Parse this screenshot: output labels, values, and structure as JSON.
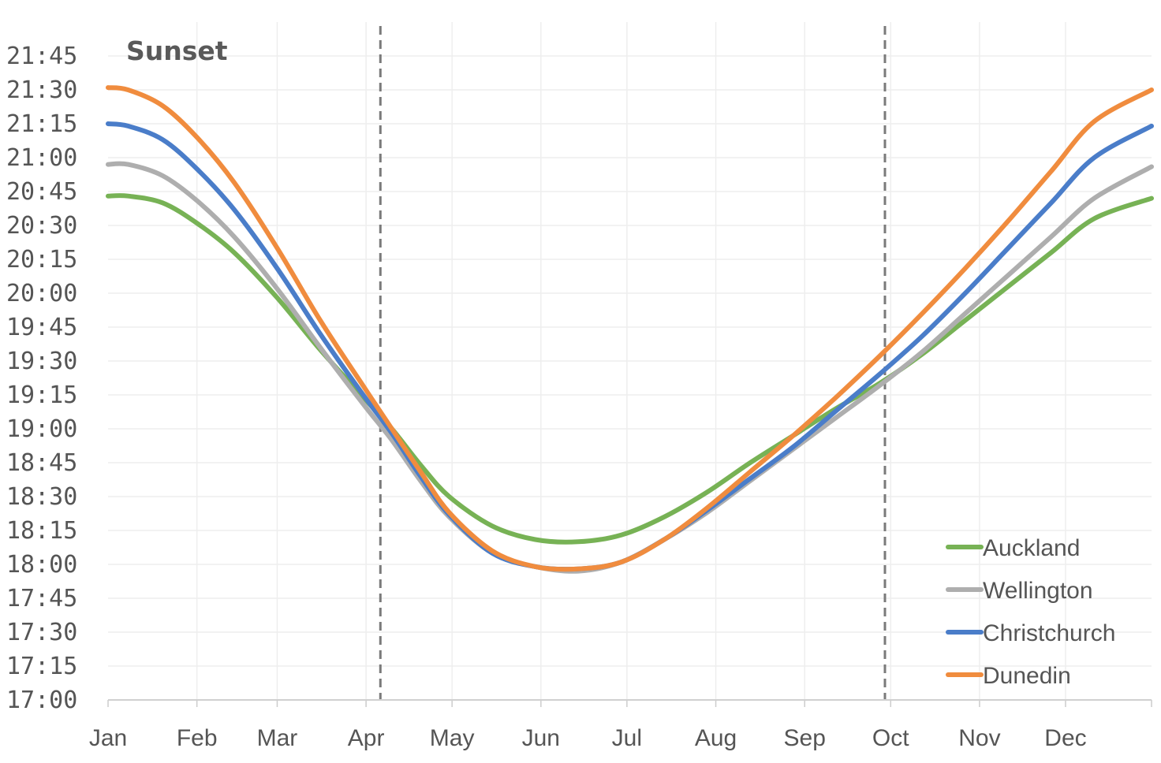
{
  "chart_data": {
    "type": "line",
    "title": "Sunset",
    "xlabel": "",
    "ylabel": "",
    "x_tick_labels": [
      "Jan",
      "Feb",
      "Mar",
      "Apr",
      "May",
      "Jun",
      "Jul",
      "Aug",
      "Sep",
      "Oct",
      "Nov",
      "Dec"
    ],
    "y_tick_labels": [
      "17:00",
      "17:15",
      "17:30",
      "17:45",
      "18:00",
      "18:15",
      "18:30",
      "18:45",
      "19:00",
      "19:15",
      "19:30",
      "19:45",
      "20:00",
      "20:15",
      "20:30",
      "20:45",
      "21:00",
      "21:15",
      "21:30",
      "21:45"
    ],
    "xlim": [
      1,
      365
    ],
    "ylim_minutes": [
      1020,
      1320
    ],
    "grid": true,
    "legend_position": "bottom-right",
    "vertical_markers": [
      {
        "day": 96,
        "label": ""
      },
      {
        "day": 272,
        "label": ""
      }
    ],
    "series": [
      {
        "name": "Auckland",
        "color": "#77b255",
        "points": [
          [
            1,
            1243
          ],
          [
            8,
            1243
          ],
          [
            20,
            1240
          ],
          [
            32,
            1231
          ],
          [
            45,
            1218
          ],
          [
            60,
            1198
          ],
          [
            75,
            1175
          ],
          [
            90,
            1154
          ],
          [
            100,
            1140
          ],
          [
            110,
            1124
          ],
          [
            120,
            1110
          ],
          [
            135,
            1097
          ],
          [
            150,
            1091
          ],
          [
            165,
            1090
          ],
          [
            180,
            1093
          ],
          [
            195,
            1101
          ],
          [
            210,
            1112
          ],
          [
            225,
            1125
          ],
          [
            240,
            1137
          ],
          [
            255,
            1149
          ],
          [
            270,
            1160
          ],
          [
            285,
            1173
          ],
          [
            300,
            1188
          ],
          [
            315,
            1203
          ],
          [
            330,
            1218
          ],
          [
            345,
            1233
          ],
          [
            365,
            1242
          ]
        ]
      },
      {
        "name": "Wellington",
        "color": "#aeaeae",
        "points": [
          [
            1,
            1257
          ],
          [
            8,
            1257
          ],
          [
            20,
            1252
          ],
          [
            32,
            1241
          ],
          [
            45,
            1225
          ],
          [
            60,
            1202
          ],
          [
            75,
            1176
          ],
          [
            90,
            1151
          ],
          [
            100,
            1135
          ],
          [
            110,
            1117
          ],
          [
            120,
            1101
          ],
          [
            135,
            1085
          ],
          [
            150,
            1079
          ],
          [
            165,
            1077
          ],
          [
            180,
            1081
          ],
          [
            195,
            1091
          ],
          [
            210,
            1103
          ],
          [
            225,
            1117
          ],
          [
            240,
            1131
          ],
          [
            255,
            1145
          ],
          [
            270,
            1159
          ],
          [
            285,
            1174
          ],
          [
            300,
            1191
          ],
          [
            315,
            1208
          ],
          [
            330,
            1225
          ],
          [
            345,
            1242
          ],
          [
            365,
            1256
          ]
        ]
      },
      {
        "name": "Christchurch",
        "color": "#4a7dc9",
        "points": [
          [
            1,
            1275
          ],
          [
            8,
            1274
          ],
          [
            20,
            1268
          ],
          [
            32,
            1255
          ],
          [
            45,
            1237
          ],
          [
            60,
            1211
          ],
          [
            75,
            1182
          ],
          [
            90,
            1155
          ],
          [
            100,
            1138
          ],
          [
            110,
            1119
          ],
          [
            120,
            1102
          ],
          [
            135,
            1085
          ],
          [
            150,
            1079
          ],
          [
            165,
            1078
          ],
          [
            180,
            1081
          ],
          [
            195,
            1091
          ],
          [
            210,
            1104
          ],
          [
            225,
            1118
          ],
          [
            240,
            1132
          ],
          [
            255,
            1148
          ],
          [
            270,
            1164
          ],
          [
            285,
            1181
          ],
          [
            300,
            1200
          ],
          [
            315,
            1220
          ],
          [
            330,
            1240
          ],
          [
            345,
            1260
          ],
          [
            365,
            1274
          ]
        ]
      },
      {
        "name": "Dunedin",
        "color": "#f08c3e",
        "points": [
          [
            1,
            1291
          ],
          [
            8,
            1290
          ],
          [
            20,
            1283
          ],
          [
            32,
            1269
          ],
          [
            45,
            1249
          ],
          [
            60,
            1220
          ],
          [
            75,
            1188
          ],
          [
            90,
            1159
          ],
          [
            100,
            1140
          ],
          [
            110,
            1121
          ],
          [
            120,
            1103
          ],
          [
            135,
            1086
          ],
          [
            150,
            1079
          ],
          [
            165,
            1078
          ],
          [
            180,
            1081
          ],
          [
            195,
            1091
          ],
          [
            210,
            1105
          ],
          [
            225,
            1121
          ],
          [
            240,
            1137
          ],
          [
            255,
            1154
          ],
          [
            270,
            1172
          ],
          [
            285,
            1191
          ],
          [
            300,
            1211
          ],
          [
            315,
            1232
          ],
          [
            330,
            1254
          ],
          [
            345,
            1276
          ],
          [
            365,
            1290
          ]
        ]
      }
    ]
  }
}
